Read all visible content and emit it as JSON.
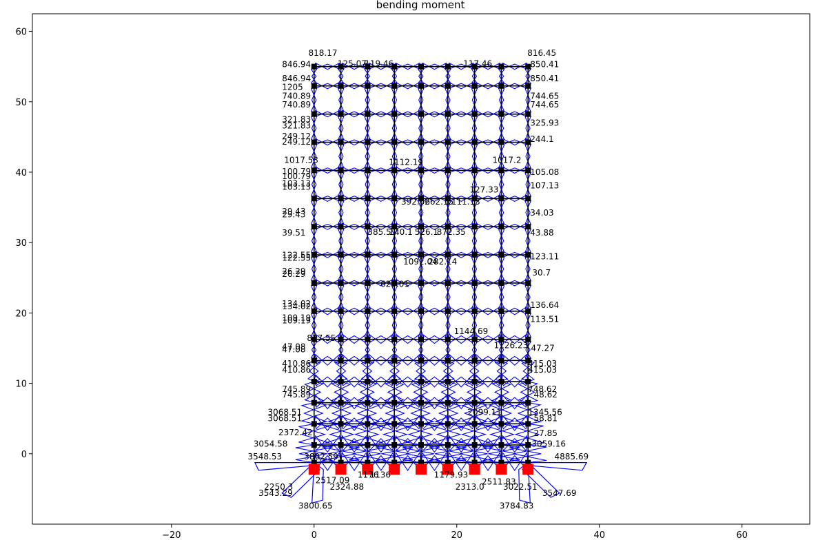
{
  "chart_data": {
    "type": "scatter",
    "title": "bending moment",
    "xlabel": "",
    "ylabel": "",
    "xlim": [
      -39.5,
      69.5
    ],
    "ylim": [
      -10,
      62.5
    ],
    "x_ticks": [
      -20,
      0,
      20,
      40,
      60
    ],
    "y_ticks": [
      0,
      10,
      20,
      30,
      40,
      50,
      60
    ],
    "grid": false,
    "legend": "none",
    "colors": {
      "frame": "#000000",
      "moment_diagram": "#0000ff",
      "supports": "#ff0000",
      "nodes": "#000000"
    },
    "structure": {
      "floor_y": [
        -1.25,
        1.25,
        4.25,
        7.25,
        10.25,
        13.25,
        16.25,
        20.25,
        24.25,
        28.25,
        32.25,
        36.25,
        40.25,
        44.25,
        48.25,
        52.25,
        55
      ],
      "column_x": [
        0,
        3.75,
        7.5,
        11.25,
        15,
        18.75,
        22.5,
        26.25,
        30
      ],
      "supports": [
        {
          "x": 0,
          "y": -2.2
        },
        {
          "x": 3.75,
          "y": -2.2
        },
        {
          "x": 7.5,
          "y": -2.2
        },
        {
          "x": 11.25,
          "y": -2.2
        },
        {
          "x": 15,
          "y": -2.2
        },
        {
          "x": 18.75,
          "y": -2.2
        },
        {
          "x": 22.5,
          "y": -2.2
        },
        {
          "x": 26.25,
          "y": -2.2
        },
        {
          "x": 30,
          "y": -2.2
        }
      ]
    },
    "annotations": [
      {
        "text": "818.17",
        "x": -0.8,
        "y": 56.9
      },
      {
        "text": "846.94",
        "x": -4.5,
        "y": 55.3
      },
      {
        "text": "846.94",
        "x": -4.5,
        "y": 53.3
      },
      {
        "text": "1205",
        "x": -4.5,
        "y": 52.1
      },
      {
        "text": "740.89",
        "x": -4.5,
        "y": 50.8
      },
      {
        "text": "740.89",
        "x": -4.5,
        "y": 49.6
      },
      {
        "text": "321.83",
        "x": -4.5,
        "y": 47.5
      },
      {
        "text": "321.83",
        "x": -4.5,
        "y": 46.6
      },
      {
        "text": "249.12",
        "x": -4.5,
        "y": 45.1
      },
      {
        "text": "249.12",
        "x": -4.5,
        "y": 44.3
      },
      {
        "text": "1017.53",
        "x": -4.2,
        "y": 41.7
      },
      {
        "text": "100.79",
        "x": -4.5,
        "y": 40.1
      },
      {
        "text": "100.79",
        "x": -4.5,
        "y": 39.4
      },
      {
        "text": "103.13",
        "x": -4.5,
        "y": 38.4
      },
      {
        "text": "103.13",
        "x": -4.5,
        "y": 37.9
      },
      {
        "text": "29.43",
        "x": -4.5,
        "y": 34.4
      },
      {
        "text": "29.43",
        "x": -4.5,
        "y": 34.0
      },
      {
        "text": "39.51",
        "x": -4.5,
        "y": 31.4
      },
      {
        "text": "122.55",
        "x": -4.5,
        "y": 28.2
      },
      {
        "text": "122.55",
        "x": -4.5,
        "y": 27.8
      },
      {
        "text": "26.29",
        "x": -4.5,
        "y": 25.9
      },
      {
        "text": "26.29",
        "x": -4.5,
        "y": 25.5
      },
      {
        "text": "134.02",
        "x": -4.5,
        "y": 21.3
      },
      {
        "text": "134.02",
        "x": -4.5,
        "y": 20.9
      },
      {
        "text": "109.19",
        "x": -4.5,
        "y": 19.3
      },
      {
        "text": "109.19",
        "x": -4.5,
        "y": 18.9
      },
      {
        "text": "827.55",
        "x": -1,
        "y": 16.4
      },
      {
        "text": "47.08",
        "x": -4.5,
        "y": 15.2
      },
      {
        "text": "47.08",
        "x": -4.5,
        "y": 14.8
      },
      {
        "text": "410.86",
        "x": -4.5,
        "y": 12.8
      },
      {
        "text": "410.86",
        "x": -4.5,
        "y": 11.9
      },
      {
        "text": "745.89",
        "x": -4.5,
        "y": 9.2
      },
      {
        "text": "745.89",
        "x": -4.5,
        "y": 8.4
      },
      {
        "text": "3068.51",
        "x": -6.5,
        "y": 5.9
      },
      {
        "text": "3068.51",
        "x": -6.5,
        "y": 5.0
      },
      {
        "text": "2372.42",
        "x": -5,
        "y": 3.0
      },
      {
        "text": "3054.58",
        "x": -8.5,
        "y": 1.4
      },
      {
        "text": "3548.53",
        "x": -9.3,
        "y": -0.4
      },
      {
        "text": "3802.59",
        "x": -1.4,
        "y": -0.4
      },
      {
        "text": "2517.09",
        "x": 0.2,
        "y": -3.8
      },
      {
        "text": "2250.3",
        "x": -7,
        "y": -4.7
      },
      {
        "text": "3543.29",
        "x": -7.8,
        "y": -5.6
      },
      {
        "text": "2324.88",
        "x": 2.2,
        "y": -4.7
      },
      {
        "text": "3800.65",
        "x": -2.2,
        "y": -7.4
      },
      {
        "text": "1176",
        "x": 6.1,
        "y": -3.0
      },
      {
        "text": "1136",
        "x": 7.8,
        "y": -3.0
      },
      {
        "text": "1179.93",
        "x": 16.8,
        "y": -3.0
      },
      {
        "text": "2511.83",
        "x": 23.5,
        "y": -4.0
      },
      {
        "text": "2313.0",
        "x": 19.8,
        "y": -4.7
      },
      {
        "text": "3022.51",
        "x": 26.5,
        "y": -4.7
      },
      {
        "text": "3547.69",
        "x": 32,
        "y": -5.6
      },
      {
        "text": "3784.83",
        "x": 26,
        "y": -7.4
      },
      {
        "text": "4885.69",
        "x": 33.7,
        "y": -0.4
      },
      {
        "text": "3059.16",
        "x": 30.5,
        "y": 1.4
      },
      {
        "text": "27.85",
        "x": 30.8,
        "y": 2.9
      },
      {
        "text": "1345.56",
        "x": 30,
        "y": 5.9
      },
      {
        "text": "58.81",
        "x": 30.8,
        "y": 5.0
      },
      {
        "text": "748.62",
        "x": 30,
        "y": 9.2
      },
      {
        "text": "48.62",
        "x": 30.8,
        "y": 8.4
      },
      {
        "text": "415.03",
        "x": 30,
        "y": 12.8
      },
      {
        "text": "415.03",
        "x": 30,
        "y": 11.9
      },
      {
        "text": "47.27",
        "x": 30.4,
        "y": 15.0
      },
      {
        "text": "113.51",
        "x": 30.3,
        "y": 19.1
      },
      {
        "text": "136.64",
        "x": 30.3,
        "y": 21.1
      },
      {
        "text": "30.7",
        "x": 30.6,
        "y": 25.7
      },
      {
        "text": "123.11",
        "x": 30.3,
        "y": 28.0
      },
      {
        "text": "43.88",
        "x": 30.3,
        "y": 31.4
      },
      {
        "text": "34.03",
        "x": 30.3,
        "y": 34.2
      },
      {
        "text": "107.13",
        "x": 30.3,
        "y": 38.1
      },
      {
        "text": "105.08",
        "x": 30.3,
        "y": 40.0
      },
      {
        "text": "244.1",
        "x": 30.3,
        "y": 44.7
      },
      {
        "text": "325.93",
        "x": 30.3,
        "y": 47.0
      },
      {
        "text": "744.65",
        "x": 30.3,
        "y": 50.8
      },
      {
        "text": "744.65",
        "x": 30.3,
        "y": 49.6
      },
      {
        "text": "850.41",
        "x": 30.3,
        "y": 55.3
      },
      {
        "text": "850.41",
        "x": 30.3,
        "y": 53.3
      },
      {
        "text": "816.45",
        "x": 29.9,
        "y": 56.9
      },
      {
        "text": "125.07",
        "x": 3.3,
        "y": 55.4
      },
      {
        "text": "119.46",
        "x": 7.1,
        "y": 55.4
      },
      {
        "text": "117.46",
        "x": 20.9,
        "y": 55.4
      },
      {
        "text": "1017.2",
        "x": 25,
        "y": 41.7
      },
      {
        "text": "127.33",
        "x": 21.8,
        "y": 37.5
      },
      {
        "text": "1112.19",
        "x": 10.5,
        "y": 41.4
      },
      {
        "text": "392.06",
        "x": 12.2,
        "y": 35.8
      },
      {
        "text": "262.15",
        "x": 15.5,
        "y": 35.8
      },
      {
        "text": "1111.13",
        "x": 18.5,
        "y": 35.8
      },
      {
        "text": "385.5",
        "x": 7.5,
        "y": 31.5
      },
      {
        "text": "140.1",
        "x": 10.5,
        "y": 31.5
      },
      {
        "text": "526.1",
        "x": 14.1,
        "y": 31.5
      },
      {
        "text": "872.35",
        "x": 17.2,
        "y": 31.5
      },
      {
        "text": "1092.04",
        "x": 12.5,
        "y": 27.3
      },
      {
        "text": "282.14",
        "x": 16,
        "y": 27.3
      },
      {
        "text": "626.01",
        "x": 9.3,
        "y": 24.1
      },
      {
        "text": "1126.23",
        "x": 25.2,
        "y": 15.4
      },
      {
        "text": "1144.69",
        "x": 19.6,
        "y": 17.4
      },
      {
        "text": "2099.11",
        "x": 21.5,
        "y": 5.9
      }
    ]
  }
}
